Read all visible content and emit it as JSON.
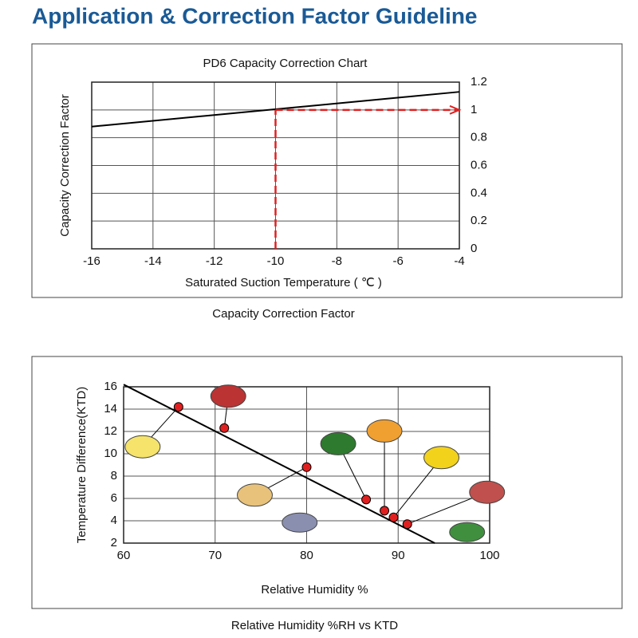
{
  "header": {
    "title": "Application & Correction Factor  Guideline"
  },
  "chart_data": [
    {
      "type": "line",
      "title": "PD6 Capacity Correction Chart",
      "x_label": "Saturated Suction Temperature ( ℃ )",
      "y_label": "Capacity Correction Factor",
      "x": [
        -16,
        -4
      ],
      "values": [
        0.88,
        1.13
      ],
      "color": "#000000",
      "xlim": [
        -16,
        -4
      ],
      "xticks": [
        -16,
        -14,
        -12,
        -10,
        -8,
        -6,
        -4
      ],
      "ylim": [
        0,
        1.2
      ],
      "yticks": [
        0,
        0.2,
        0.4,
        0.6,
        0.8,
        1,
        1.2
      ],
      "y_axis_side": "right",
      "guide": {
        "x": -10,
        "y": 1,
        "color": "#e02020"
      },
      "grid": true,
      "caption": "Capacity Correction Factor"
    },
    {
      "type": "scatter",
      "x_label": "Relative Humidity %",
      "y_label": "Temperature Difference(KTD)",
      "line": {
        "x": [
          60,
          94
        ],
        "values": [
          16.2,
          2
        ],
        "color": "#000000"
      },
      "x": [
        66,
        71,
        80,
        86.5,
        88.5,
        89.5,
        91
      ],
      "values": [
        14.2,
        12.3,
        8.8,
        5.9,
        4.9,
        4.3,
        3.7
      ],
      "color": "#e02020",
      "xlim": [
        60,
        100
      ],
      "xticks": [
        60,
        70,
        80,
        90,
        100
      ],
      "ylim": [
        2,
        16
      ],
      "yticks": [
        2,
        4,
        6,
        8,
        10,
        12,
        14,
        16
      ],
      "grid": true,
      "caption": "Relative Humidity %RH vs KTD"
    }
  ]
}
